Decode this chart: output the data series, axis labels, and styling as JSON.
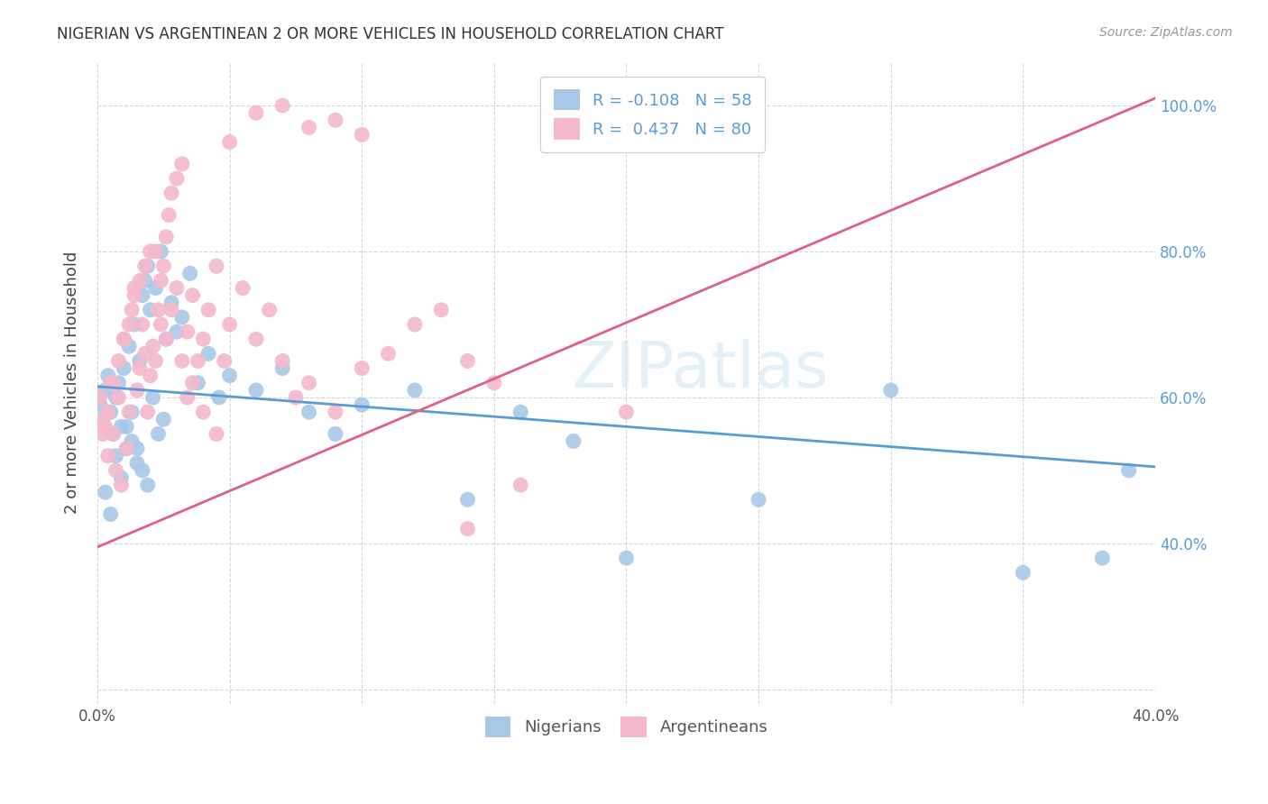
{
  "title": "NIGERIAN VS ARGENTINEAN 2 OR MORE VEHICLES IN HOUSEHOLD CORRELATION CHART",
  "source": "Source: ZipAtlas.com",
  "ylabel_label": "2 or more Vehicles in Household",
  "xlim": [
    0.0,
    0.4
  ],
  "ylim": [
    0.18,
    1.06
  ],
  "xtick_positions": [
    0.0,
    0.05,
    0.1,
    0.15,
    0.2,
    0.25,
    0.3,
    0.35,
    0.4
  ],
  "ytick_positions": [
    0.2,
    0.4,
    0.6,
    0.8,
    1.0
  ],
  "xtick_labels": [
    "0.0%",
    "",
    "",
    "",
    "",
    "",
    "",
    "",
    "40.0%"
  ],
  "ytick_labels_right": [
    "",
    "40.0%",
    "60.0%",
    "80.0%",
    "100.0%"
  ],
  "blue_scatter_color": "#a8c8e8",
  "pink_scatter_color": "#f4b8cc",
  "blue_line_color": "#5b9bd5",
  "pink_line_color": "#e06080",
  "legend_blue_r": "-0.108",
  "legend_blue_n": "58",
  "legend_pink_r": "0.437",
  "legend_pink_n": "80",
  "blue_line_x0": 0.0,
  "blue_line_y0": 0.615,
  "blue_line_x1": 0.4,
  "blue_line_y1": 0.505,
  "pink_line_x0": 0.0,
  "pink_line_y0": 0.395,
  "pink_line_x1": 0.4,
  "pink_line_y1": 1.01,
  "watermark_text": "ZIPatlas",
  "nigerian_x": [
    0.001,
    0.002,
    0.003,
    0.004,
    0.005,
    0.006,
    0.007,
    0.008,
    0.009,
    0.01,
    0.011,
    0.012,
    0.013,
    0.014,
    0.015,
    0.016,
    0.017,
    0.018,
    0.019,
    0.02,
    0.022,
    0.024,
    0.026,
    0.028,
    0.03,
    0.032,
    0.035,
    0.038,
    0.042,
    0.046,
    0.05,
    0.06,
    0.07,
    0.08,
    0.09,
    0.1,
    0.12,
    0.14,
    0.16,
    0.18,
    0.003,
    0.005,
    0.007,
    0.009,
    0.011,
    0.013,
    0.015,
    0.017,
    0.019,
    0.021,
    0.023,
    0.025,
    0.2,
    0.25,
    0.3,
    0.35,
    0.38,
    0.39
  ],
  "nigerian_y": [
    0.59,
    0.57,
    0.61,
    0.63,
    0.58,
    0.55,
    0.6,
    0.62,
    0.56,
    0.64,
    0.53,
    0.67,
    0.54,
    0.7,
    0.51,
    0.65,
    0.74,
    0.76,
    0.78,
    0.72,
    0.75,
    0.8,
    0.68,
    0.73,
    0.69,
    0.71,
    0.77,
    0.62,
    0.66,
    0.6,
    0.63,
    0.61,
    0.64,
    0.58,
    0.55,
    0.59,
    0.61,
    0.46,
    0.58,
    0.54,
    0.47,
    0.44,
    0.52,
    0.49,
    0.56,
    0.58,
    0.53,
    0.5,
    0.48,
    0.6,
    0.55,
    0.57,
    0.38,
    0.46,
    0.61,
    0.36,
    0.38,
    0.5
  ],
  "argentinean_x": [
    0.001,
    0.002,
    0.003,
    0.004,
    0.005,
    0.006,
    0.007,
    0.008,
    0.009,
    0.01,
    0.011,
    0.012,
    0.013,
    0.014,
    0.015,
    0.016,
    0.017,
    0.018,
    0.019,
    0.02,
    0.021,
    0.022,
    0.023,
    0.024,
    0.025,
    0.026,
    0.027,
    0.028,
    0.03,
    0.032,
    0.034,
    0.036,
    0.038,
    0.04,
    0.042,
    0.045,
    0.048,
    0.05,
    0.055,
    0.06,
    0.065,
    0.07,
    0.075,
    0.08,
    0.09,
    0.1,
    0.11,
    0.12,
    0.13,
    0.14,
    0.002,
    0.004,
    0.006,
    0.008,
    0.01,
    0.012,
    0.014,
    0.016,
    0.018,
    0.02,
    0.022,
    0.024,
    0.026,
    0.028,
    0.03,
    0.032,
    0.034,
    0.036,
    0.04,
    0.045,
    0.05,
    0.06,
    0.07,
    0.08,
    0.09,
    0.1,
    0.15,
    0.2,
    0.14,
    0.16
  ],
  "argentinean_y": [
    0.6,
    0.57,
    0.56,
    0.52,
    0.62,
    0.55,
    0.5,
    0.65,
    0.48,
    0.68,
    0.53,
    0.58,
    0.72,
    0.75,
    0.61,
    0.64,
    0.7,
    0.66,
    0.58,
    0.63,
    0.67,
    0.8,
    0.72,
    0.76,
    0.78,
    0.82,
    0.85,
    0.88,
    0.9,
    0.92,
    0.69,
    0.74,
    0.65,
    0.68,
    0.72,
    0.78,
    0.65,
    0.7,
    0.75,
    0.68,
    0.72,
    0.65,
    0.6,
    0.62,
    0.58,
    0.64,
    0.66,
    0.7,
    0.72,
    0.65,
    0.55,
    0.58,
    0.62,
    0.6,
    0.68,
    0.7,
    0.74,
    0.76,
    0.78,
    0.8,
    0.65,
    0.7,
    0.68,
    0.72,
    0.75,
    0.65,
    0.6,
    0.62,
    0.58,
    0.55,
    0.95,
    0.99,
    1.0,
    0.97,
    0.98,
    0.96,
    0.62,
    0.58,
    0.42,
    0.48
  ]
}
